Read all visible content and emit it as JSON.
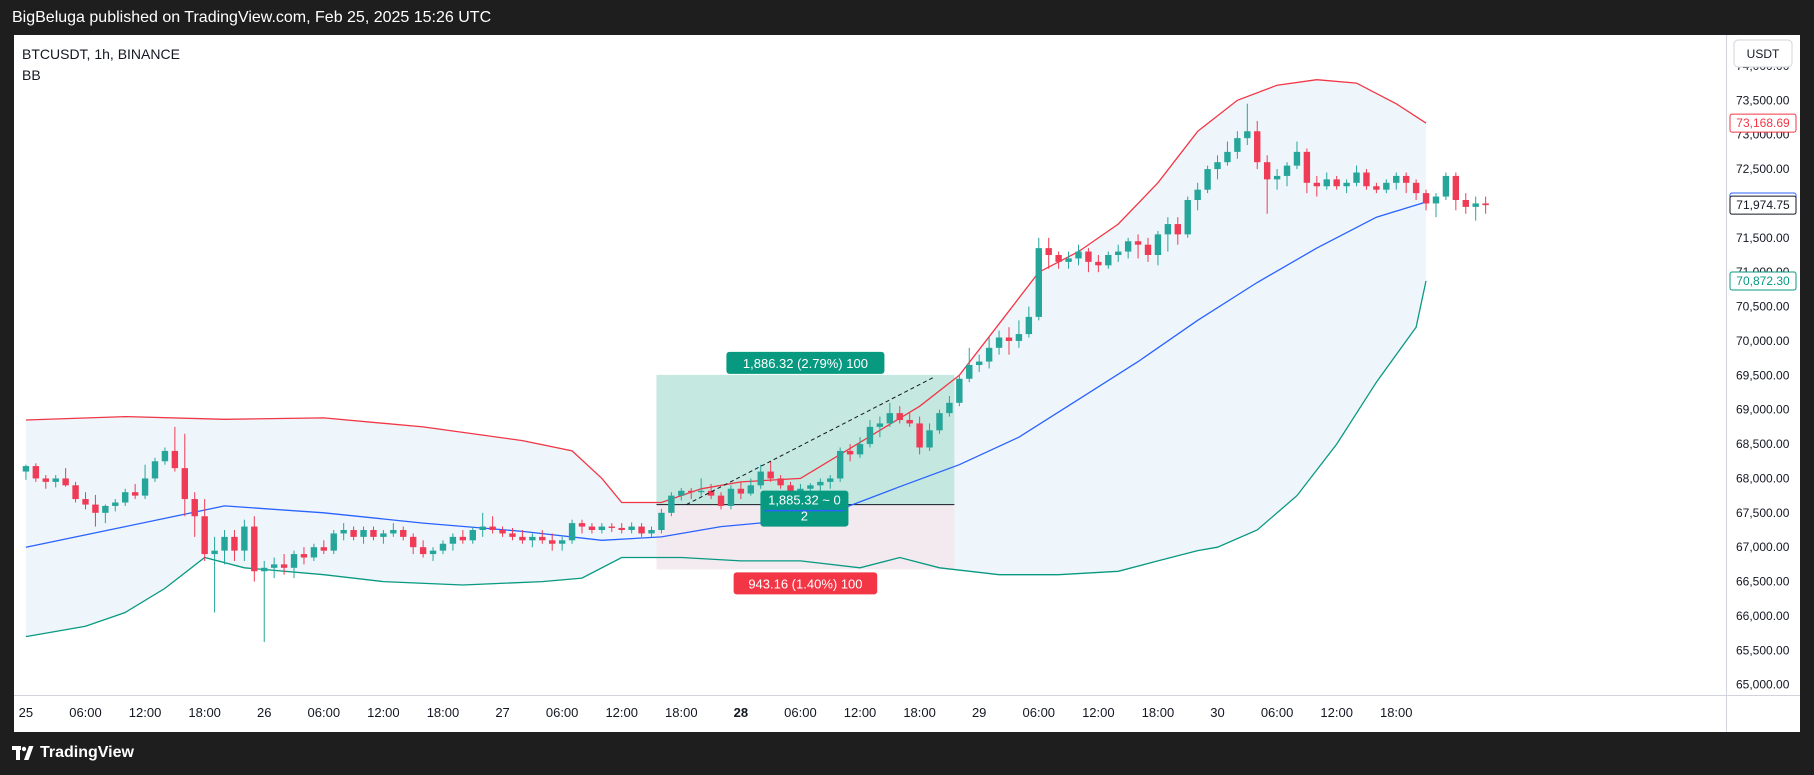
{
  "header": {
    "published": "BigBeluga published on TradingView.com, Feb 25, 2025 15:26 UTC"
  },
  "legend": {
    "symbol": "BTCUSDT, 1h, BINANCE",
    "indicator": "BB"
  },
  "footer": {
    "brand": "TradingView"
  },
  "colors": {
    "up": "#26a69a",
    "down": "#ef3b55",
    "upper_band": "#f23645",
    "basis": "#2962ff",
    "lower_band": "#089981",
    "band_fill": "#eef5fb",
    "profit_zone": "#bfe6dd",
    "loss_zone": "#f3e9ee"
  },
  "chart_data": {
    "type": "candlestick",
    "currency": "USDT",
    "y_ticks": [
      "74,000.00",
      "73,500.00",
      "73,000.00",
      "72,500.00",
      "72,000.00",
      "71,500.00",
      "71,000.00",
      "70,500.00",
      "70,000.00",
      "69,500.00",
      "69,000.00",
      "68,500.00",
      "68,000.00",
      "67,500.00",
      "67,000.00",
      "66,500.00",
      "66,000.00",
      "65,500.00",
      "65,000.00"
    ],
    "ylim": [
      64850,
      74450
    ],
    "x_ticks": [
      {
        "label": "25",
        "i": 0
      },
      {
        "label": "06:00",
        "i": 6
      },
      {
        "label": "12:00",
        "i": 12
      },
      {
        "label": "18:00",
        "i": 18
      },
      {
        "label": "26",
        "i": 24
      },
      {
        "label": "06:00",
        "i": 30
      },
      {
        "label": "12:00",
        "i": 36
      },
      {
        "label": "18:00",
        "i": 42
      },
      {
        "label": "27",
        "i": 48
      },
      {
        "label": "06:00",
        "i": 54
      },
      {
        "label": "12:00",
        "i": 60
      },
      {
        "label": "18:00",
        "i": 66
      },
      {
        "label": "28",
        "i": 72,
        "bold": true
      },
      {
        "label": "06:00",
        "i": 78
      },
      {
        "label": "12:00",
        "i": 84
      },
      {
        "label": "18:00",
        "i": 90
      },
      {
        "label": "29",
        "i": 96
      },
      {
        "label": "06:00",
        "i": 102
      },
      {
        "label": "12:00",
        "i": 108
      },
      {
        "label": "18:00",
        "i": 114
      },
      {
        "label": "30",
        "i": 120
      },
      {
        "label": "06:00",
        "i": 126
      },
      {
        "label": "12:00",
        "i": 132
      },
      {
        "label": "18:00",
        "i": 138
      }
    ],
    "price_labels": [
      {
        "text": "73,168.69",
        "price": 73168.69,
        "color": "#f23645",
        "style": "outline"
      },
      {
        "text": "72,020.49",
        "price": 72020.49,
        "color": "#2962ff",
        "style": "outline"
      },
      {
        "text": "71,974.75",
        "price": 71974.75,
        "color": "#131722",
        "style": "outline"
      },
      {
        "text": "70,872.30",
        "price": 70872.3,
        "color": "#089981",
        "style": "outline"
      }
    ],
    "candles": [
      [
        68100,
        68200,
        67980,
        68180
      ],
      [
        68180,
        68220,
        67950,
        68000
      ],
      [
        68000,
        68050,
        67850,
        67950
      ],
      [
        67950,
        68050,
        67870,
        68000
      ],
      [
        68000,
        68150,
        67880,
        67900
      ],
      [
        67900,
        67950,
        67650,
        67700
      ],
      [
        67700,
        67800,
        67550,
        67620
      ],
      [
        67620,
        67760,
        67300,
        67500
      ],
      [
        67500,
        67620,
        67350,
        67600
      ],
      [
        67600,
        67700,
        67520,
        67650
      ],
      [
        67650,
        67850,
        67600,
        67800
      ],
      [
        67800,
        67920,
        67700,
        67750
      ],
      [
        67750,
        68200,
        67700,
        68000
      ],
      [
        68000,
        68300,
        67950,
        68250
      ],
      [
        68250,
        68450,
        68200,
        68400
      ],
      [
        68400,
        68750,
        68100,
        68150
      ],
      [
        68150,
        68650,
        67450,
        67700
      ],
      [
        67700,
        67800,
        67150,
        67450
      ],
      [
        67450,
        67700,
        66800,
        66900
      ],
      [
        66900,
        67150,
        66050,
        66950
      ],
      [
        66950,
        67250,
        66750,
        67150
      ],
      [
        67150,
        67250,
        66800,
        66950
      ],
      [
        66950,
        67400,
        66800,
        67300
      ],
      [
        67300,
        67450,
        66500,
        66650
      ],
      [
        66650,
        66800,
        65620,
        66700
      ],
      [
        66700,
        66850,
        66550,
        66750
      ],
      [
        66750,
        66900,
        66600,
        66700
      ],
      [
        66700,
        66950,
        66550,
        66900
      ],
      [
        66900,
        67000,
        66750,
        66850
      ],
      [
        66850,
        67050,
        66800,
        67000
      ],
      [
        67000,
        67100,
        66900,
        66950
      ],
      [
        66950,
        67250,
        66900,
        67200
      ],
      [
        67200,
        67350,
        67100,
        67250
      ],
      [
        67250,
        67300,
        67100,
        67150
      ],
      [
        67150,
        67300,
        67050,
        67250
      ],
      [
        67250,
        67300,
        67100,
        67150
      ],
      [
        67150,
        67250,
        67050,
        67200
      ],
      [
        67200,
        67350,
        67150,
        67250
      ],
      [
        67250,
        67300,
        67100,
        67150
      ],
      [
        67150,
        67200,
        66900,
        67000
      ],
      [
        67000,
        67100,
        66850,
        66900
      ],
      [
        66900,
        67000,
        66800,
        66950
      ],
      [
        66950,
        67100,
        66900,
        67050
      ],
      [
        67050,
        67200,
        66950,
        67150
      ],
      [
        67150,
        67250,
        67050,
        67100
      ],
      [
        67100,
        67300,
        67050,
        67250
      ],
      [
        67250,
        67500,
        67150,
        67300
      ],
      [
        67300,
        67450,
        67200,
        67250
      ],
      [
        67250,
        67300,
        67150,
        67200
      ],
      [
        67200,
        67280,
        67100,
        67150
      ],
      [
        67150,
        67250,
        67050,
        67100
      ],
      [
        67100,
        67200,
        67000,
        67150
      ],
      [
        67150,
        67250,
        67050,
        67100
      ],
      [
        67100,
        67200,
        66950,
        67050
      ],
      [
        67050,
        67150,
        66950,
        67100
      ],
      [
        67100,
        67400,
        67050,
        67350
      ],
      [
        67350,
        67400,
        67200,
        67300
      ],
      [
        67300,
        67350,
        67200,
        67250
      ],
      [
        67250,
        67350,
        67200,
        67300
      ],
      [
        67300,
        67350,
        67220,
        67280
      ],
      [
        67280,
        67350,
        67200,
        67250
      ],
      [
        67250,
        67360,
        67200,
        67300
      ],
      [
        67300,
        67350,
        67150,
        67200
      ],
      [
        67200,
        67300,
        67150,
        67250
      ],
      [
        67250,
        67560,
        67200,
        67500
      ],
      [
        67500,
        67800,
        67450,
        67750
      ],
      [
        67750,
        67860,
        67680,
        67820
      ],
      [
        67820,
        67860,
        67700,
        67800
      ],
      [
        67800,
        68000,
        67750,
        67820
      ],
      [
        67820,
        67920,
        67700,
        67750
      ],
      [
        67750,
        67800,
        67550,
        67600
      ],
      [
        67600,
        67900,
        67550,
        67850
      ],
      [
        67850,
        67950,
        67700,
        67780
      ],
      [
        67780,
        68000,
        67750,
        67900
      ],
      [
        67900,
        68200,
        67850,
        68100
      ],
      [
        68100,
        68250,
        67950,
        68000
      ],
      [
        68000,
        68050,
        67850,
        67900
      ],
      [
        67900,
        67950,
        67700,
        67780
      ],
      [
        67780,
        67920,
        67700,
        67850
      ],
      [
        67850,
        67930,
        67780,
        67900
      ],
      [
        67900,
        68000,
        67800,
        67950
      ],
      [
        67950,
        68050,
        67850,
        68000
      ],
      [
        68000,
        68450,
        67950,
        68400
      ],
      [
        68400,
        68500,
        68250,
        68350
      ],
      [
        68350,
        68600,
        68300,
        68500
      ],
      [
        68500,
        68850,
        68450,
        68750
      ],
      [
        68750,
        68900,
        68600,
        68800
      ],
      [
        68800,
        69100,
        68750,
        68950
      ],
      [
        68950,
        69050,
        68800,
        68850
      ],
      [
        68850,
        68950,
        68750,
        68800
      ],
      [
        68800,
        68900,
        68350,
        68450
      ],
      [
        68450,
        68800,
        68400,
        68700
      ],
      [
        68700,
        69000,
        68650,
        68950
      ],
      [
        68950,
        69200,
        68900,
        69100
      ],
      [
        69100,
        69500,
        69050,
        69450
      ],
      [
        69450,
        69900,
        69400,
        69650
      ],
      [
        69650,
        69800,
        69550,
        69700
      ],
      [
        69700,
        70050,
        69600,
        69900
      ],
      [
        69900,
        70150,
        69800,
        70050
      ],
      [
        70050,
        70200,
        69800,
        70000
      ],
      [
        70000,
        70300,
        69900,
        70100
      ],
      [
        70100,
        70500,
        70050,
        70350
      ],
      [
        70350,
        71500,
        70300,
        71350
      ],
      [
        71350,
        71500,
        71050,
        71250
      ],
      [
        71250,
        71300,
        71050,
        71150
      ],
      [
        71150,
        71300,
        71050,
        71200
      ],
      [
        71200,
        71400,
        71100,
        71300
      ],
      [
        71300,
        71350,
        71000,
        71150
      ],
      [
        71150,
        71250,
        71000,
        71100
      ],
      [
        71100,
        71300,
        71050,
        71250
      ],
      [
        71250,
        71400,
        71150,
        71300
      ],
      [
        71300,
        71500,
        71200,
        71450
      ],
      [
        71450,
        71550,
        71200,
        71400
      ],
      [
        71400,
        71500,
        71150,
        71250
      ],
      [
        71250,
        71600,
        71100,
        71550
      ],
      [
        71550,
        71800,
        71300,
        71700
      ],
      [
        71700,
        71800,
        71400,
        71550
      ],
      [
        71550,
        72100,
        71500,
        72050
      ],
      [
        72050,
        72300,
        71900,
        72200
      ],
      [
        72200,
        72550,
        72150,
        72500
      ],
      [
        72500,
        72700,
        72350,
        72600
      ],
      [
        72600,
        72900,
        72550,
        72750
      ],
      [
        72750,
        73050,
        72650,
        72950
      ],
      [
        72950,
        73450,
        72850,
        73050
      ],
      [
        73050,
        73200,
        72500,
        72600
      ],
      [
        72600,
        72700,
        71850,
        72350
      ],
      [
        72350,
        72500,
        72200,
        72400
      ],
      [
        72400,
        72600,
        72250,
        72550
      ],
      [
        72550,
        72900,
        72500,
        72750
      ],
      [
        72750,
        72800,
        72150,
        72300
      ],
      [
        72300,
        72400,
        72100,
        72250
      ],
      [
        72250,
        72450,
        72200,
        72350
      ],
      [
        72350,
        72400,
        72200,
        72250
      ],
      [
        72250,
        72350,
        72150,
        72300
      ],
      [
        72300,
        72550,
        72250,
        72450
      ],
      [
        72450,
        72500,
        72200,
        72250
      ],
      [
        72250,
        72300,
        72150,
        72200
      ],
      [
        72200,
        72350,
        72150,
        72300
      ],
      [
        72300,
        72450,
        72200,
        72400
      ],
      [
        72400,
        72450,
        72150,
        72300
      ],
      [
        72300,
        72350,
        72050,
        72150
      ],
      [
        72150,
        72200,
        71900,
        72000
      ],
      [
        72000,
        72150,
        71800,
        72100
      ],
      [
        72100,
        72450,
        72050,
        72400
      ],
      [
        72400,
        72450,
        71900,
        72050
      ],
      [
        72050,
        72150,
        71850,
        71950
      ],
      [
        71950,
        72100,
        71750,
        72000
      ],
      [
        72000,
        72100,
        71850,
        71975
      ]
    ],
    "bands": {
      "upper": [
        [
          0,
          68850
        ],
        [
          10,
          68900
        ],
        [
          20,
          68860
        ],
        [
          30,
          68880
        ],
        [
          40,
          68750
        ],
        [
          50,
          68550
        ],
        [
          55,
          68400
        ],
        [
          58,
          68000
        ],
        [
          60,
          67650
        ],
        [
          64,
          67650
        ],
        [
          68,
          67850
        ],
        [
          72,
          67950
        ],
        [
          78,
          68000
        ],
        [
          82,
          68350
        ],
        [
          86,
          68700
        ],
        [
          90,
          69050
        ],
        [
          94,
          69500
        ],
        [
          98,
          70250
        ],
        [
          102,
          71000
        ],
        [
          106,
          71300
        ],
        [
          110,
          71700
        ],
        [
          114,
          72300
        ],
        [
          118,
          73050
        ],
        [
          122,
          73500
        ],
        [
          126,
          73720
        ],
        [
          130,
          73800
        ],
        [
          134,
          73750
        ],
        [
          138,
          73450
        ],
        [
          141,
          73168.69
        ]
      ],
      "basis": [
        [
          0,
          67000
        ],
        [
          10,
          67300
        ],
        [
          15,
          67450
        ],
        [
          20,
          67600
        ],
        [
          30,
          67500
        ],
        [
          40,
          67350
        ],
        [
          50,
          67230
        ],
        [
          58,
          67100
        ],
        [
          64,
          67150
        ],
        [
          70,
          67300
        ],
        [
          76,
          67380
        ],
        [
          82,
          67550
        ],
        [
          88,
          67880
        ],
        [
          94,
          68200
        ],
        [
          100,
          68600
        ],
        [
          106,
          69150
        ],
        [
          112,
          69700
        ],
        [
          118,
          70300
        ],
        [
          124,
          70850
        ],
        [
          130,
          71350
        ],
        [
          136,
          71800
        ],
        [
          141,
          72020.49
        ]
      ],
      "lower": [
        [
          0,
          65700
        ],
        [
          6,
          65850
        ],
        [
          10,
          66050
        ],
        [
          14,
          66400
        ],
        [
          18,
          66850
        ],
        [
          22,
          66700
        ],
        [
          30,
          66600
        ],
        [
          36,
          66500
        ],
        [
          44,
          66450
        ],
        [
          52,
          66500
        ],
        [
          56,
          66550
        ],
        [
          60,
          66850
        ],
        [
          66,
          66850
        ],
        [
          72,
          66800
        ],
        [
          78,
          66800
        ],
        [
          84,
          66700
        ],
        [
          88,
          66850
        ],
        [
          92,
          66700
        ],
        [
          98,
          66600
        ],
        [
          104,
          66600
        ],
        [
          110,
          66650
        ],
        [
          114,
          66800
        ],
        [
          118,
          66950
        ],
        [
          120,
          67000
        ],
        [
          124,
          67250
        ],
        [
          128,
          67750
        ],
        [
          132,
          68500
        ],
        [
          136,
          69400
        ],
        [
          140,
          70200
        ],
        [
          141,
          70872.3
        ]
      ]
    },
    "position": {
      "type": "long",
      "start_i": 63.5,
      "end_i": 93.5,
      "entry": 67620,
      "target": 69506.32,
      "stop": 66676.84,
      "profit_label": "1,886.32 (2.79%) 100",
      "loss_label": "943.16 (1.40%) 100",
      "center_label_line1": "1,885.32 ~ 0",
      "center_label_line2": "2"
    }
  }
}
